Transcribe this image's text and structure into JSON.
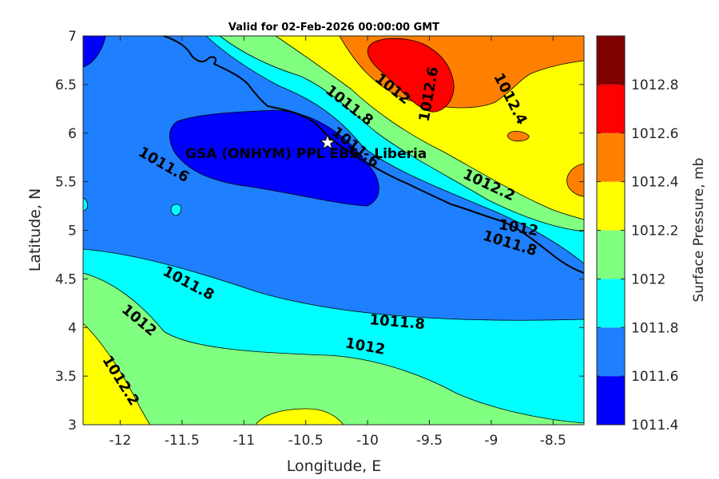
{
  "title": "Valid for 02-Feb-2026 00:00:00 GMT",
  "station_label": "GSA (ONHYM) PPL EBS  - Liberia",
  "colors": {
    "levels": [
      "#0000FF",
      "#1E7FFF",
      "#00FFFF",
      "#80FF80",
      "#FFFF00",
      "#FF8000",
      "#FF0000",
      "#800000"
    ],
    "contour_line": "#000000",
    "coastline": "#000000"
  },
  "chart_data": {
    "type": "contour-map",
    "title": "Valid for 02-Feb-2026 00:00:00 GMT",
    "xlabel": "Longitude, E",
    "ylabel": "Latitude, N",
    "xlim": [
      -12.3,
      -8.25
    ],
    "ylim": [
      3,
      7
    ],
    "xticks": [
      "-12",
      "-11.5",
      "-11",
      "-10.5",
      "-10",
      "-9.5",
      "-9",
      "-8.5"
    ],
    "yticks": [
      "3",
      "3.5",
      "4",
      "4.5",
      "5",
      "5.5",
      "6",
      "6.5",
      "7"
    ],
    "colorbar": {
      "label": "Surface Pressure, mb",
      "ticks": [
        "1011.4",
        "1011.6",
        "1011.8",
        "1012",
        "1012.2",
        "1012.4",
        "1012.6",
        "1012.8"
      ]
    },
    "station": {
      "name": "GSA (ONHYM) PPL EBS  - Liberia",
      "lon": -10.3,
      "lat": 5.92,
      "marker": "star"
    },
    "contour_labels": [
      {
        "text": "1012",
        "lon": -9.8,
        "lat": 6.45,
        "rot": 38
      },
      {
        "text": "1011.8",
        "lon": -10.15,
        "lat": 6.28,
        "rot": 38
      },
      {
        "text": "1011.6",
        "lon": -10.1,
        "lat": 5.85,
        "rot": 38
      },
      {
        "text": "1011.6",
        "lon": -11.65,
        "lat": 5.67,
        "rot": 30
      },
      {
        "text": "1012.6",
        "lon": -9.5,
        "lat": 6.4,
        "rot": -80
      },
      {
        "text": "1012.4",
        "lon": -8.85,
        "lat": 6.35,
        "rot": 63
      },
      {
        "text": "1012.2",
        "lon": -9.02,
        "lat": 5.46,
        "rot": 25
      },
      {
        "text": "1012",
        "lon": -8.78,
        "lat": 5.02,
        "rot": 10
      },
      {
        "text": "1011.8",
        "lon": -8.85,
        "lat": 4.86,
        "rot": 17
      },
      {
        "text": "1011.8",
        "lon": -11.45,
        "lat": 4.45,
        "rot": 28
      },
      {
        "text": "1012",
        "lon": -11.85,
        "lat": 4.07,
        "rot": 40
      },
      {
        "text": "1011.8",
        "lon": -9.76,
        "lat": 4.05,
        "rot": 5
      },
      {
        "text": "1012",
        "lon": -10.02,
        "lat": 3.8,
        "rot": 10
      },
      {
        "text": "1012.2",
        "lon": -12.0,
        "lat": 3.45,
        "rot": 58
      }
    ]
  }
}
